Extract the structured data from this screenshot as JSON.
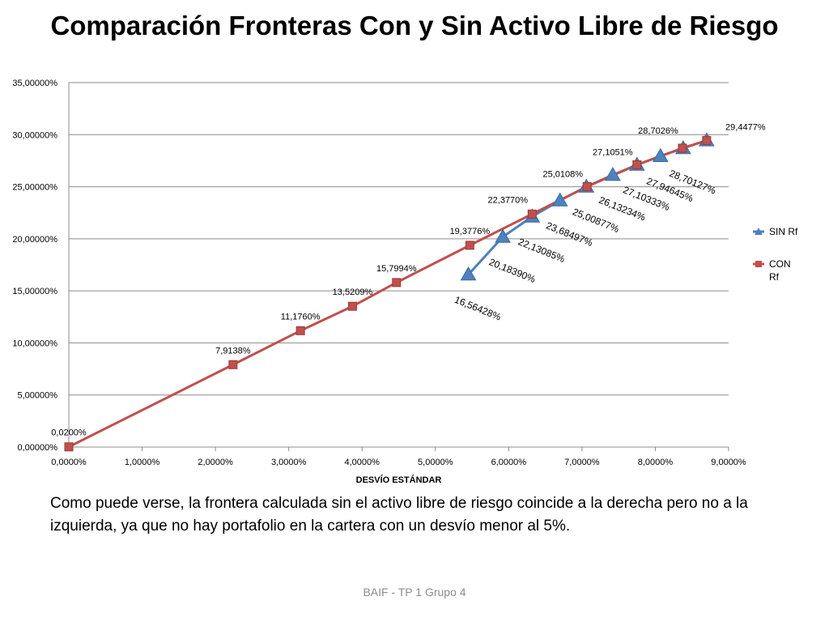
{
  "slide": {
    "caption": "Como puede verse, la frontera calculada sin el activo libre de riesgo coincide a la derecha pero no a la izquierda, ya que no hay portafolio en la cartera con un desvío menor al 5%.",
    "footer": "BAIF - TP 1 Grupo 4"
  },
  "chart_data": {
    "type": "line",
    "title": "Comparación Fronteras Con y Sin Activo Libre de Riesgo",
    "xlabel": "DESVÍO ESTÁNDAR",
    "ylabel": "",
    "xlim": [
      0,
      9
    ],
    "ylim": [
      0,
      35
    ],
    "grid": true,
    "legend_position": "right",
    "x_tick_labels": [
      "0,0000%",
      "1,0000%",
      "2,0000%",
      "3,0000%",
      "4,0000%",
      "5,0000%",
      "6,0000%",
      "7,0000%",
      "8,0000%",
      "9,0000%"
    ],
    "y_tick_labels": [
      "0,00000%",
      "5,00000%",
      "10,00000%",
      "15,00000%",
      "20,00000%",
      "25,00000%",
      "30,00000%",
      "35,00000%"
    ],
    "series": [
      {
        "name": "SIN Rf",
        "color": "#4f81bd",
        "marker": "triangle",
        "x": [
          5.45,
          5.92,
          6.32,
          6.7,
          7.06,
          7.42,
          7.75,
          8.07,
          8.38,
          8.7
        ],
        "y": [
          16.56428,
          20.1839,
          22.13085,
          23.68497,
          25.00877,
          26.13234,
          27.10333,
          27.94645,
          28.70127,
          29.4477
        ],
        "labels": [
          "16,56428%",
          "20,18390%",
          "22,13085%",
          "23,68497%",
          "25,00877%",
          "26,13234%",
          "27,10333%",
          "27,94645%",
          "28,70127%"
        ]
      },
      {
        "name": "CON Rf",
        "color": "#c0504d",
        "marker": "square",
        "x": [
          0.0,
          2.24,
          3.16,
          3.87,
          4.47,
          5.47,
          6.32,
          7.07,
          7.75,
          8.37,
          8.7
        ],
        "y": [
          0.02,
          7.9138,
          11.176,
          13.5209,
          15.7994,
          19.3776,
          22.377,
          25.0108,
          27.1051,
          28.7026,
          29.4477
        ],
        "labels": [
          "0,0200%",
          "7,9138%",
          "11,1760%",
          "13,5209%",
          "15,7994%",
          "19,3776%",
          "22,3770%",
          "25,0108%",
          "27,1051%",
          "28,7026%",
          "29,4477%"
        ]
      }
    ]
  }
}
